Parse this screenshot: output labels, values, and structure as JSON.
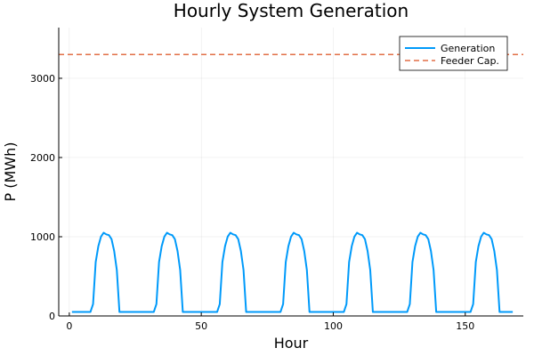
{
  "chart_data": {
    "type": "line",
    "title": "Hourly System Generation",
    "xlabel": "Hour",
    "ylabel": "P (MWh)",
    "xlim": [
      -4,
      172
    ],
    "ylim": [
      0,
      3640
    ],
    "xticks": [
      0,
      50,
      100,
      150
    ],
    "yticks": [
      0,
      1000,
      2000,
      3000
    ],
    "xtick_labels": [
      "0",
      "50",
      "100",
      "150"
    ],
    "ytick_labels": [
      "0",
      "1000",
      "2000",
      "3000"
    ],
    "grid": true,
    "legend_position": "top-right",
    "series": [
      {
        "name": "Generation",
        "color": "#009AFA",
        "style": "solid",
        "baseline": 50,
        "day_profile": [
          50,
          50,
          50,
          50,
          50,
          50,
          50,
          50,
          150,
          680,
          880,
          1000,
          1050,
          1030,
          1020,
          970,
          820,
          580,
          50,
          50,
          50,
          50,
          50,
          50
        ],
        "days": 7,
        "x_start": 1
      },
      {
        "name": "Feeder Cap.",
        "color": "#E26F46",
        "style": "dashed",
        "value": 3300
      }
    ]
  }
}
